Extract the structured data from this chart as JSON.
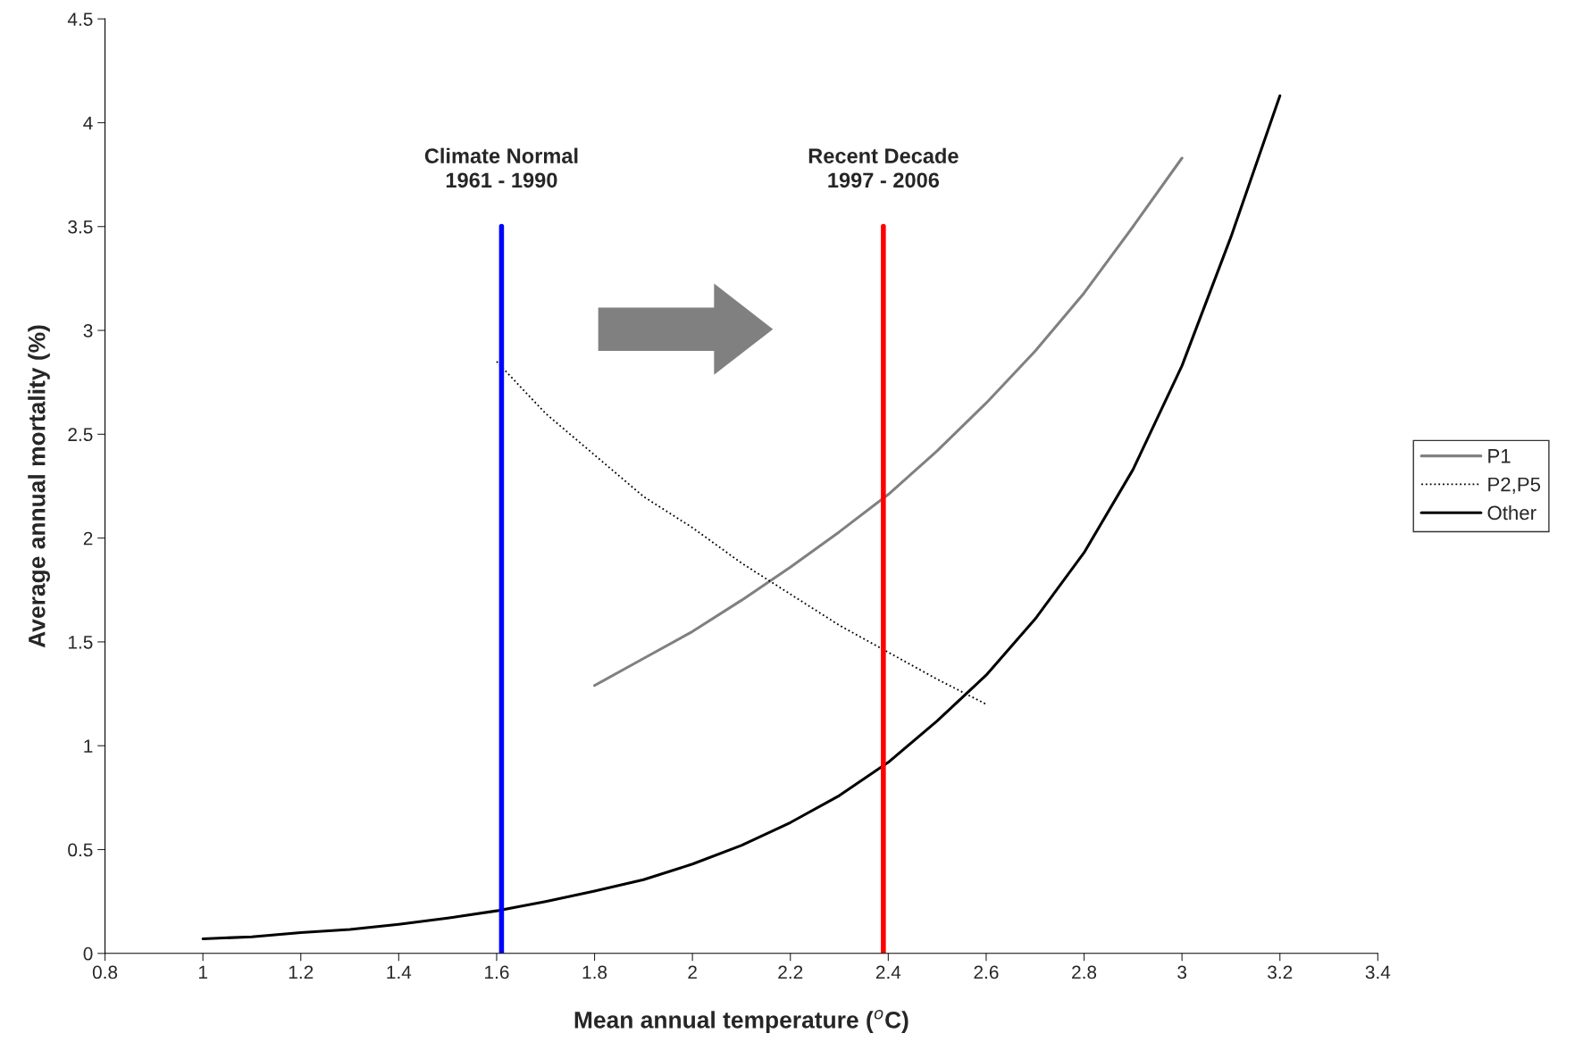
{
  "chart_data": {
    "type": "line",
    "xlabel": "Mean annual temperature ($^{o}$C)",
    "ylabel": "Average annual mortality (%)",
    "xlim": [
      0.8,
      3.4
    ],
    "xticks": [
      0.8,
      1,
      1.2,
      1.4,
      1.6,
      1.8,
      2,
      2.2,
      2.4,
      2.6,
      2.8,
      3,
      3.2,
      3.4
    ],
    "ylim": [
      0,
      4.5
    ],
    "yticks": [
      0,
      0.5,
      1,
      1.5,
      2,
      2.5,
      3,
      3.5,
      4,
      4.5
    ],
    "grid": false,
    "legend": "right",
    "marker": "none",
    "series": [
      {
        "name": "P1",
        "color": "#808080",
        "line_style": "solid",
        "x": [
          1.8,
          1.9,
          2.0,
          2.1,
          2.2,
          2.3,
          2.4,
          2.5,
          2.6,
          2.7,
          2.8,
          2.9,
          3.0
        ],
        "values": [
          1.29,
          1.42,
          1.55,
          1.7,
          1.86,
          2.03,
          2.21,
          2.42,
          2.65,
          2.9,
          3.18,
          3.5,
          3.83
        ]
      },
      {
        "name": "P2,P5",
        "color": "#000000",
        "line_style": "dotted",
        "x": [
          1.6,
          1.7,
          1.8,
          1.9,
          2.0,
          2.1,
          2.2,
          2.3,
          2.4,
          2.5,
          2.6
        ],
        "values": [
          2.85,
          2.6,
          2.4,
          2.2,
          2.05,
          1.88,
          1.73,
          1.58,
          1.45,
          1.32,
          1.2
        ]
      },
      {
        "name": "Other",
        "color": "#000000",
        "line_style": "solid",
        "x": [
          1.0,
          1.1,
          1.2,
          1.3,
          1.4,
          1.5,
          1.6,
          1.7,
          1.8,
          1.9,
          2.0,
          2.1,
          2.2,
          2.3,
          2.4,
          2.5,
          2.6,
          2.7,
          2.8,
          2.9,
          3.0,
          3.1,
          3.2
        ],
        "values": [
          0.07,
          0.08,
          0.1,
          0.115,
          0.14,
          0.17,
          0.205,
          0.25,
          0.3,
          0.355,
          0.43,
          0.52,
          0.63,
          0.76,
          0.92,
          1.12,
          1.34,
          1.61,
          1.93,
          2.33,
          2.83,
          3.45,
          4.13
        ]
      }
    ],
    "ref_lines": [
      {
        "axis": "x",
        "value": 1.61,
        "label": "Climate Normal\n1961 - 1990",
        "color": "#0000ff"
      },
      {
        "axis": "x",
        "value": 2.39,
        "label": "Recent Decade\n1997 - 2006",
        "color": "#ff0000"
      }
    ]
  }
}
